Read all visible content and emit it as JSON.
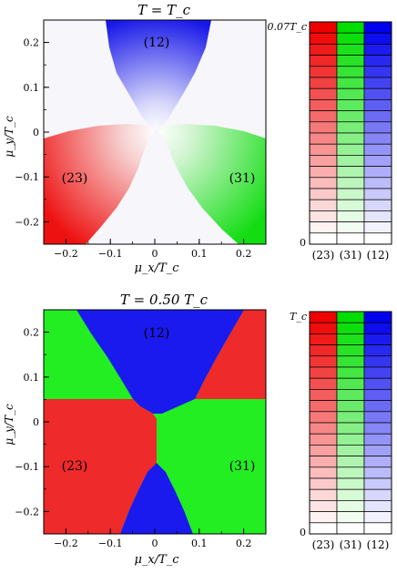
{
  "chart_data": [
    {
      "type": "heatmap",
      "title": "T = T_c",
      "xlabel": "μ_x/T_c",
      "ylabel": "μ_y/T_c",
      "xlim": [
        -0.25,
        0.25
      ],
      "ylim": [
        -0.25,
        0.25
      ],
      "x_ticks": [
        "−0.2",
        "−0.1",
        "0",
        "0.1",
        "0.2"
      ],
      "y_ticks": [
        "0.2",
        "0.1",
        "0",
        "−0.1",
        "−0.2"
      ],
      "regions": [
        {
          "label": "(12)",
          "color": "#0000ee",
          "direction_deg": 90
        },
        {
          "label": "(23)",
          "color": "#ee0000",
          "direction_deg": 210
        },
        {
          "label": "(31)",
          "color": "#00dd00",
          "direction_deg": 330
        }
      ],
      "shading": "intensity of each colour grows with distance from origin; white near origin and along sector boundaries",
      "colorbar": {
        "max_label": "0.07T_c",
        "min_label": "0",
        "columns": [
          "(23)",
          "(31)",
          "(12)"
        ],
        "colors": [
          "#ee0000",
          "#00dd00",
          "#0000ee"
        ],
        "steps": 20
      }
    },
    {
      "type": "heatmap",
      "title": "T = 0.50 T_c",
      "xlabel": "μ_x/T_c",
      "ylabel": "μ_y/T_c",
      "xlim": [
        -0.25,
        0.25
      ],
      "ylim": [
        -0.25,
        0.25
      ],
      "x_ticks": [
        "−0.2",
        "−0.1",
        "0",
        "0.1",
        "0.2"
      ],
      "y_ticks": [
        "0.2",
        "0.1",
        "0",
        "−0.1",
        "−0.2"
      ],
      "regions": [
        {
          "label": "(12)",
          "color": "#1a1aee",
          "direction_deg": 90
        },
        {
          "label": "(23)",
          "color": "#ee2a2a",
          "direction_deg": 210
        },
        {
          "label": "(31)",
          "color": "#22ee22",
          "direction_deg": 330
        }
      ],
      "shading": "saturated colour over the whole plane; six alternating sectors",
      "colorbar": {
        "max_label": "T_c",
        "min_label": "0",
        "columns": [
          "(23)",
          "(31)",
          "(12)"
        ],
        "colors": [
          "#ee0000",
          "#00dd00",
          "#0000ee"
        ],
        "steps": 20
      }
    }
  ]
}
